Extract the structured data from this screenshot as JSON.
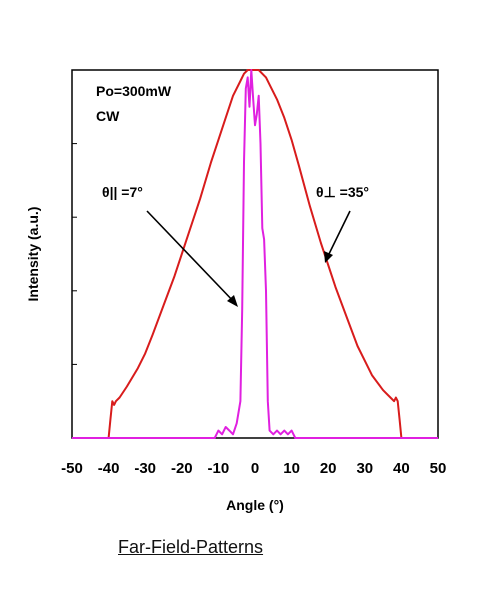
{
  "chart_data": {
    "type": "line",
    "title": "",
    "xlabel": "Angle (°)",
    "ylabel": "Intensity (a.u.)",
    "xlim": [
      -50,
      50
    ],
    "ylim": [
      0,
      1
    ],
    "x_ticks": [
      "-50",
      "-40",
      "-30",
      "-20",
      "-10",
      "0",
      "10",
      "20",
      "30",
      "40",
      "50"
    ],
    "y_tick_labels": false,
    "grid": false,
    "legend": "none",
    "annotations": [
      {
        "text": "Po=300mW"
      },
      {
        "text": "CW"
      },
      {
        "text": "θ|| =7°"
      },
      {
        "text": "θ⊥ =35°"
      }
    ],
    "series": [
      {
        "color": "#d81c1c",
        "x": [
          -50,
          -40,
          -39.5,
          -39,
          -38.5,
          -38,
          -37,
          -35,
          -32,
          -30,
          -28,
          -25,
          -22,
          -20,
          -18,
          -15,
          -12,
          -10,
          -8,
          -6,
          -4,
          -3,
          -2,
          -1,
          0,
          1,
          2,
          3,
          4,
          6,
          8,
          10,
          12,
          15,
          18,
          20,
          22,
          25,
          28,
          30,
          32,
          35,
          37,
          38,
          38.5,
          39,
          39.5,
          40,
          50
        ],
        "y": [
          0,
          0,
          0.05,
          0.1,
          0.09,
          0.1,
          0.11,
          0.14,
          0.19,
          0.23,
          0.28,
          0.36,
          0.44,
          0.5,
          0.56,
          0.65,
          0.75,
          0.81,
          0.87,
          0.93,
          0.97,
          0.99,
          1.0,
          1.0,
          1.0,
          1.0,
          0.99,
          0.98,
          0.96,
          0.92,
          0.87,
          0.81,
          0.74,
          0.63,
          0.53,
          0.47,
          0.41,
          0.33,
          0.25,
          0.21,
          0.17,
          0.13,
          0.11,
          0.1,
          0.11,
          0.1,
          0.05,
          0,
          0
        ]
      },
      {
        "color": "#e020e0",
        "x": [
          -50,
          -11,
          -10,
          -9,
          -8,
          -7,
          -6,
          -5,
          -4,
          -3.5,
          -3,
          -2.5,
          -2,
          -1.5,
          -1,
          -0.5,
          0,
          0.5,
          1,
          1.5,
          2,
          2.5,
          3,
          3.5,
          4,
          5,
          6,
          7,
          8,
          9,
          10,
          11,
          50
        ],
        "y": [
          0,
          0,
          0.02,
          0.01,
          0.03,
          0.02,
          0.01,
          0.04,
          0.1,
          0.35,
          0.75,
          0.95,
          0.98,
          0.9,
          1.0,
          0.92,
          0.85,
          0.88,
          0.93,
          0.8,
          0.57,
          0.54,
          0.4,
          0.1,
          0.02,
          0.01,
          0.02,
          0.01,
          0.02,
          0.01,
          0.02,
          0,
          0
        ]
      }
    ]
  },
  "caption": "Far-Field-Patterns"
}
